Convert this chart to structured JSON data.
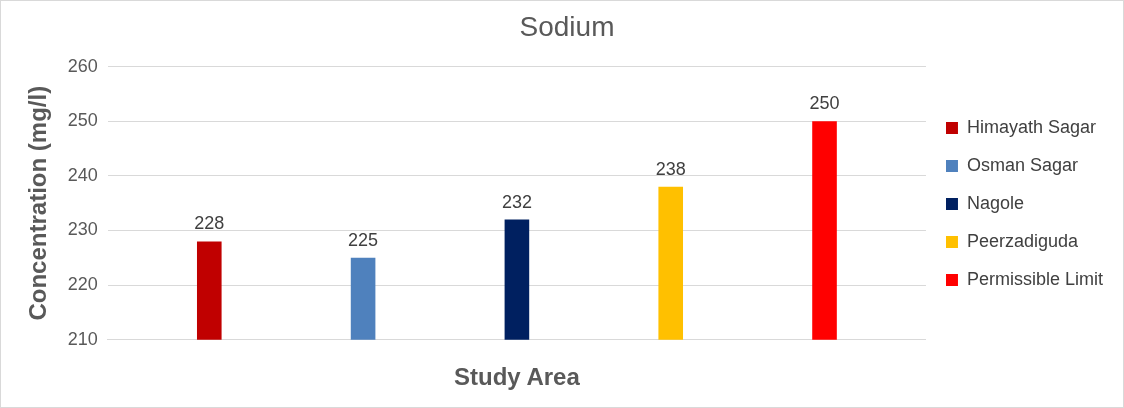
{
  "chart_data": {
    "type": "bar",
    "title": "Sodium",
    "xlabel": "Study Area",
    "ylabel": "Concentration (mg/l)",
    "categories": [
      null
    ],
    "series": [
      {
        "name": "Himayath Sagar",
        "color": "#c00000",
        "values": [
          228
        ]
      },
      {
        "name": "Osman Sagar",
        "color": "#4f81bd",
        "values": [
          225
        ]
      },
      {
        "name": "Nagole",
        "color": "#002060",
        "values": [
          232
        ]
      },
      {
        "name": "Peerzadiguda",
        "color": "#ffc000",
        "values": [
          238
        ]
      },
      {
        "name": "Permissible Limit",
        "color": "#ff0000",
        "values": [
          250
        ]
      }
    ],
    "ylim": [
      210,
      260
    ],
    "yticks": [
      210,
      220,
      230,
      240,
      250,
      260
    ],
    "grid": "y",
    "legend": "right",
    "data_labels": true
  }
}
